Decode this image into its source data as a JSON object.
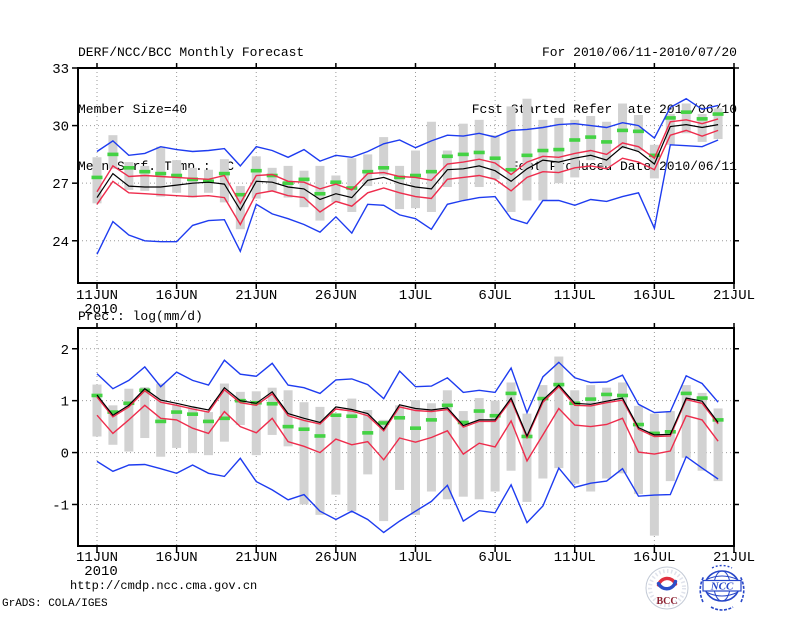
{
  "header": {
    "title": "DERF/NCC/BCC Monthly Forecast",
    "member_size": "Member Size=40",
    "period": "For 2010/06/11-2010/07/20",
    "fcst_started": "Fcst Started Refer Date 2010/06/10",
    "fcst_produced": "Fcst Produced Date 2010/06/11"
  },
  "footer": {
    "url": "http://cmdp.ncc.cma.gov.cn",
    "credit": "GrADS: COLA/IGES",
    "logos": {
      "bcc_label": "BCC",
      "ncc_label": "NCC"
    }
  },
  "colors": {
    "envelope_blue": "#1e3cf0",
    "quartile_red": "#ee2c4c",
    "mean_black": "#000000",
    "climatology_green": "#44d244",
    "spread_gray": "#d2d2d2",
    "grid_gray": "#9a9a9a"
  },
  "chart_data": [
    {
      "type": "line",
      "name": "temperature",
      "title": "Mean Surf. Temp.: °C",
      "ylabel": "°C",
      "xlabel": "",
      "grid": true,
      "ylim": [
        21.8,
        33.0
      ],
      "yticks": [
        24,
        27,
        30,
        33
      ],
      "ytick_labels": [
        "24",
        "27",
        "30",
        "33"
      ],
      "x_tick_days": [
        0,
        5,
        10,
        15,
        20,
        25,
        30,
        35,
        40
      ],
      "x_tick_labels": [
        "11JUN",
        "16JUN",
        "21JUN",
        "26JUN",
        "1JUL",
        "6JUL",
        "11JUL",
        "16JUL",
        "21JUL"
      ],
      "x_year_label": "2010",
      "series": [
        {
          "name": "ensemble-max",
          "color": "#1e3cf0",
          "width": 1.4,
          "values": [
            28.65,
            29.2,
            28.45,
            28.55,
            28.9,
            28.75,
            28.65,
            28.7,
            28.8,
            27.9,
            28.9,
            28.7,
            28.35,
            28.75,
            28.15,
            28.45,
            28.35,
            28.65,
            29.05,
            29.25,
            28.85,
            29.2,
            29.5,
            29.45,
            29.6,
            29.4,
            29.75,
            29.8,
            29.9,
            30.05,
            30.1,
            30.0,
            29.9,
            30.15,
            30.0,
            29.35,
            30.95,
            31.4,
            30.85,
            31.05
          ]
        },
        {
          "name": "ensemble-min",
          "color": "#1e3cf0",
          "width": 1.4,
          "values": [
            23.3,
            25.0,
            24.3,
            24.0,
            23.95,
            23.95,
            24.8,
            25.05,
            25.1,
            23.45,
            25.9,
            25.4,
            25.15,
            24.85,
            24.45,
            25.25,
            24.4,
            25.9,
            25.85,
            25.35,
            25.15,
            24.6,
            25.9,
            26.1,
            26.25,
            26.3,
            25.15,
            24.9,
            26.1,
            26.1,
            25.85,
            26.15,
            26.05,
            26.3,
            26.5,
            24.65,
            29.0,
            28.95,
            28.9,
            29.25
          ]
        },
        {
          "name": "upper-quartile",
          "color": "#ee2c4c",
          "width": 1.4,
          "values": [
            26.55,
            27.9,
            27.35,
            27.4,
            27.35,
            27.3,
            27.25,
            27.2,
            27.4,
            25.95,
            27.4,
            27.45,
            27.1,
            27.05,
            26.7,
            26.95,
            26.65,
            27.5,
            27.55,
            27.35,
            27.3,
            27.15,
            28.0,
            28.1,
            28.25,
            28.05,
            27.45,
            28.1,
            28.4,
            28.35,
            28.55,
            28.7,
            28.5,
            29.1,
            28.9,
            28.3,
            30.2,
            30.3,
            30.1,
            30.35
          ]
        },
        {
          "name": "lower-quartile",
          "color": "#ee2c4c",
          "width": 1.4,
          "values": [
            25.9,
            27.1,
            26.5,
            26.45,
            26.4,
            26.35,
            26.3,
            26.35,
            26.25,
            24.85,
            26.45,
            26.6,
            26.35,
            26.25,
            25.5,
            26.05,
            25.8,
            26.5,
            26.75,
            26.5,
            26.3,
            26.2,
            27.2,
            27.3,
            27.4,
            27.2,
            26.6,
            27.3,
            27.6,
            27.55,
            27.8,
            27.9,
            27.75,
            28.3,
            28.1,
            27.7,
            29.5,
            29.75,
            29.45,
            29.75
          ]
        },
        {
          "name": "ensemble-mean",
          "color": "#000000",
          "width": 1.2,
          "values": [
            26.25,
            27.5,
            26.85,
            26.8,
            26.8,
            26.9,
            27.0,
            27.05,
            26.95,
            25.6,
            27.1,
            27.05,
            26.8,
            26.7,
            26.15,
            26.45,
            26.25,
            27.15,
            27.3,
            27.0,
            26.8,
            26.7,
            27.7,
            27.75,
            27.9,
            27.65,
            27.1,
            27.75,
            28.2,
            28.1,
            28.3,
            28.45,
            28.2,
            28.9,
            28.65,
            28.0,
            29.95,
            30.05,
            29.9,
            30.05
          ]
        }
      ],
      "bars": {
        "name": "ensemble-spread",
        "color": "#d2d2d2",
        "top": [
          28.35,
          29.5,
          28.1,
          27.9,
          28.9,
          28.2,
          27.8,
          27.7,
          28.25,
          26.85,
          28.4,
          27.8,
          27.9,
          27.65,
          27.9,
          27.4,
          28.3,
          28.5,
          29.4,
          27.9,
          28.7,
          30.2,
          28.7,
          30.1,
          30.3,
          29.5,
          31.0,
          31.4,
          30.3,
          30.4,
          30.3,
          30.5,
          30.2,
          31.15,
          30.55,
          29.0,
          30.6,
          31.15,
          30.6,
          30.9
        ],
        "bottom": [
          25.95,
          27.75,
          26.65,
          26.6,
          26.3,
          26.5,
          26.25,
          26.5,
          26.0,
          24.6,
          26.2,
          26.6,
          26.25,
          25.75,
          25.05,
          26.0,
          25.5,
          26.85,
          27.4,
          25.65,
          25.7,
          25.5,
          26.8,
          26.1,
          26.8,
          27.2,
          25.5,
          26.1,
          26.1,
          27.0,
          27.3,
          28.2,
          27.9,
          28.8,
          28.7,
          27.25,
          29.0,
          29.6,
          29.15,
          29.3
        ]
      },
      "dashes": {
        "name": "climatology",
        "color": "#44d244",
        "values": [
          27.3,
          28.5,
          27.8,
          27.6,
          27.5,
          27.4,
          27.2,
          27.1,
          27.5,
          26.4,
          27.65,
          27.4,
          27.0,
          27.2,
          26.45,
          27.05,
          26.75,
          27.6,
          27.8,
          27.3,
          27.4,
          27.6,
          28.4,
          28.5,
          28.6,
          28.3,
          27.7,
          28.45,
          28.7,
          28.75,
          29.25,
          29.4,
          29.15,
          29.75,
          29.7,
          28.45,
          30.4,
          30.7,
          30.35,
          30.6
        ]
      }
    },
    {
      "type": "line",
      "name": "precipitation",
      "title": "Prec.: log(mm/d)",
      "ylabel": "log(mm/d)",
      "xlabel": "",
      "grid": true,
      "ylim": [
        -1.8,
        2.4
      ],
      "yticks": [
        -1,
        0,
        1,
        2
      ],
      "ytick_labels": [
        "-1",
        "0",
        "1",
        "2"
      ],
      "x_tick_days": [
        0,
        5,
        10,
        15,
        20,
        25,
        30,
        35,
        40
      ],
      "x_tick_labels": [
        "11JUN",
        "16JUN",
        "21JUN",
        "26JUN",
        "1JUL",
        "6JUL",
        "11JUL",
        "16JUL",
        "21JUL"
      ],
      "x_year_label": "2010",
      "series": [
        {
          "name": "ensemble-max",
          "color": "#1e3cf0",
          "width": 1.4,
          "values": [
            1.52,
            1.23,
            1.39,
            1.65,
            1.27,
            1.55,
            1.39,
            1.3,
            1.78,
            1.51,
            1.47,
            1.72,
            1.3,
            1.25,
            1.14,
            1.4,
            1.42,
            1.31,
            1.04,
            1.57,
            1.27,
            1.28,
            1.44,
            1.16,
            1.2,
            1.16,
            1.63,
            0.77,
            1.46,
            1.74,
            1.44,
            1.35,
            1.36,
            1.49,
            0.93,
            0.77,
            0.79,
            1.48,
            1.33,
            0.97
          ]
        },
        {
          "name": "ensemble-min",
          "color": "#1e3cf0",
          "width": 1.4,
          "values": [
            -0.17,
            -0.36,
            -0.24,
            -0.23,
            -0.31,
            -0.4,
            -0.24,
            -0.4,
            -0.46,
            -0.11,
            -0.56,
            -0.72,
            -0.91,
            -0.81,
            -1.13,
            -1.29,
            -1.13,
            -1.29,
            -1.54,
            -1.32,
            -1.13,
            -0.94,
            -0.63,
            -1.32,
            -1.12,
            -1.16,
            -0.62,
            -1.35,
            -1.03,
            -0.3,
            -0.67,
            -0.59,
            -0.55,
            -0.31,
            -0.84,
            -0.82,
            -0.81,
            -0.08,
            -0.3,
            -0.51
          ]
        },
        {
          "name": "upper-quartile",
          "color": "#ee2c4c",
          "width": 1.4,
          "values": [
            1.07,
            0.69,
            0.88,
            1.19,
            0.97,
            0.91,
            0.84,
            0.78,
            1.21,
            0.96,
            0.91,
            1.13,
            0.71,
            0.62,
            0.55,
            0.84,
            0.8,
            0.71,
            0.42,
            0.88,
            0.81,
            0.79,
            0.83,
            0.49,
            0.6,
            0.6,
            1.01,
            0.29,
            0.97,
            1.27,
            0.91,
            0.9,
            0.96,
            1.01,
            0.45,
            0.31,
            0.32,
            1.02,
            0.95,
            0.55
          ]
        },
        {
          "name": "lower-quartile",
          "color": "#ee2c4c",
          "width": 1.4,
          "values": [
            0.72,
            0.37,
            0.63,
            0.91,
            0.66,
            0.63,
            0.47,
            0.37,
            0.79,
            0.5,
            0.38,
            0.66,
            0.21,
            0.12,
            0.0,
            0.26,
            0.15,
            0.21,
            -0.14,
            0.28,
            0.2,
            0.29,
            0.42,
            -0.03,
            0.18,
            0.11,
            0.61,
            -0.16,
            0.34,
            0.85,
            0.53,
            0.5,
            0.54,
            0.66,
            0.01,
            -0.03,
            0.03,
            0.71,
            0.63,
            0.22
          ]
        },
        {
          "name": "ensemble-mean",
          "color": "#000000",
          "width": 1.2,
          "values": [
            1.11,
            0.72,
            0.91,
            1.23,
            1.01,
            0.95,
            0.88,
            0.82,
            1.25,
            1.0,
            0.95,
            1.17,
            0.75,
            0.66,
            0.58,
            0.88,
            0.83,
            0.75,
            0.45,
            0.92,
            0.85,
            0.82,
            0.86,
            0.52,
            0.63,
            0.63,
            1.05,
            0.32,
            1.01,
            1.3,
            0.95,
            0.93,
            0.99,
            1.05,
            0.48,
            0.34,
            0.35,
            1.05,
            0.99,
            0.58
          ]
        }
      ],
      "bars": {
        "name": "ensemble-spread",
        "color": "#d2d2d2",
        "top": [
          1.31,
          0.91,
          1.23,
          1.26,
          1.33,
          0.91,
          0.88,
          0.78,
          1.33,
          1.17,
          1.18,
          1.25,
          1.2,
          0.97,
          0.88,
          0.72,
          1.04,
          0.82,
          0.63,
          0.91,
          1.01,
          0.95,
          1.2,
          0.8,
          1.05,
          1.0,
          1.35,
          0.75,
          1.3,
          1.85,
          1.2,
          1.3,
          1.25,
          1.35,
          0.9,
          0.75,
          0.8,
          1.3,
          1.15,
          0.85
        ],
        "bottom": [
          0.31,
          0.15,
          0.02,
          0.28,
          -0.08,
          0.09,
          -0.01,
          -0.05,
          0.21,
          0.53,
          -0.05,
          0.34,
          0.12,
          -1.0,
          -1.2,
          -0.81,
          -1.13,
          -0.42,
          -1.32,
          -0.72,
          -1.2,
          -0.75,
          -0.9,
          -0.85,
          -0.9,
          -0.75,
          -0.35,
          -0.95,
          -0.5,
          -0.3,
          -0.6,
          -0.75,
          -0.5,
          -0.4,
          -0.8,
          -1.6,
          -0.55,
          -0.1,
          -0.35,
          -0.55
        ]
      },
      "dashes": {
        "name": "climatology",
        "color": "#44d244",
        "values": [
          1.1,
          0.78,
          0.95,
          1.2,
          0.6,
          0.78,
          0.74,
          0.6,
          0.66,
          1.0,
          0.96,
          0.94,
          0.5,
          0.45,
          0.32,
          0.72,
          0.7,
          0.38,
          0.57,
          0.67,
          0.47,
          0.63,
          0.91,
          0.58,
          0.8,
          0.71,
          1.14,
          0.31,
          1.04,
          1.31,
          0.95,
          1.03,
          1.12,
          1.1,
          0.54,
          0.37,
          0.4,
          1.14,
          1.05,
          0.63
        ]
      }
    }
  ]
}
